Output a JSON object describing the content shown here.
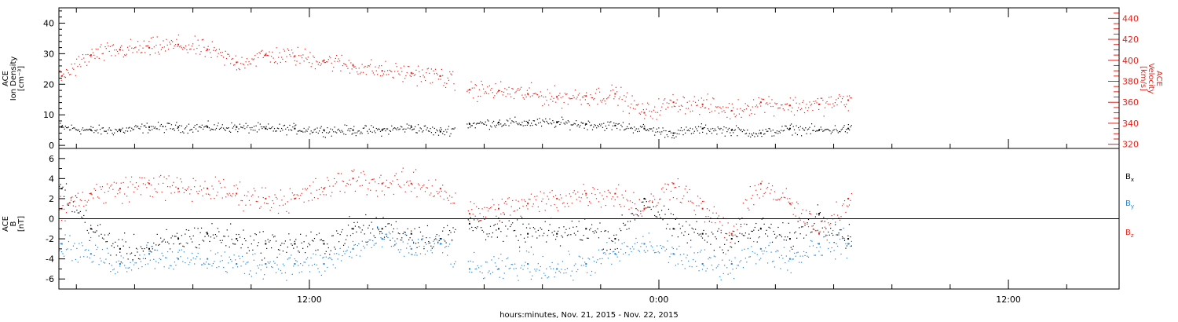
{
  "colors": {
    "black": "#000000",
    "red": "#e3231b",
    "blue": "#1f83d6",
    "frame": "#000000",
    "background": "#ffffff"
  },
  "x_axis": {
    "label": "hours:minutes, Nov. 21, 2015 - Nov. 22, 2015",
    "range_hours": [
      3.4,
      39.8
    ],
    "tick_labels": [
      {
        "hour": 12,
        "text": "12:00"
      },
      {
        "hour": 24,
        "text": "0:00"
      },
      {
        "hour": 36,
        "text": "12:00"
      }
    ],
    "minor_step_hours": 2
  },
  "panels": {
    "top": {
      "left_label_lines": [
        "ACE",
        "Ion Density",
        "[cm⁻³]"
      ],
      "right_label_lines": [
        "ACE",
        "Velocity",
        "[km/s]"
      ],
      "left_ylim": [
        -1,
        45
      ],
      "left_ticks": [
        0,
        10,
        20,
        30,
        40
      ],
      "right_ylim": [
        316,
        450
      ],
      "right_ticks": [
        320,
        340,
        360,
        380,
        400,
        420,
        440
      ]
    },
    "bottom": {
      "left_label_lines": [
        "ACE",
        "B",
        "[nT]"
      ],
      "ylim": [
        -7,
        7
      ],
      "ticks": [
        -6,
        -4,
        -2,
        0,
        2,
        4,
        6
      ],
      "legend": [
        {
          "text": "B",
          "sub": "x",
          "color": "#000000"
        },
        {
          "text": "B",
          "sub": "y",
          "color": "#1f83d6"
        },
        {
          "text": "B",
          "sub": "z",
          "color": "#e3231b"
        }
      ]
    }
  },
  "chart_data": [
    {
      "type": "scatter",
      "panel": "top",
      "xlabel": "hours:minutes, Nov. 21, 2015 - Nov. 22, 2015",
      "ylabel": "ACE Ion Density [cm⁻³]",
      "y2label": "ACE Velocity [km/s]",
      "ylim": [
        -1,
        45
      ],
      "y2lim": [
        316,
        450
      ],
      "gap_hours": [
        17.0,
        17.4
      ],
      "series": [
        {
          "name": "ACE Ion Density",
          "color": "#000000",
          "axis": "left",
          "x": [
            3.5,
            4.5,
            5.5,
            6.5,
            7.5,
            8.5,
            9.5,
            10.5,
            11.5,
            12.5,
            13.5,
            14.5,
            15.5,
            16.5,
            17.5,
            18.5,
            19.5,
            20.5,
            21.5,
            22.5,
            23.5,
            24.5,
            25.5,
            26.5,
            27.5,
            28.5,
            29.5,
            30.5
          ],
          "y": [
            6,
            5,
            5,
            6,
            6,
            6,
            6,
            5.5,
            5.5,
            5,
            5,
            5,
            6,
            4.5,
            7,
            7.5,
            7.5,
            7.5,
            7,
            6.5,
            5.5,
            4,
            5.5,
            5,
            4,
            5.5,
            5,
            5.5
          ]
        },
        {
          "name": "ACE Velocity",
          "color": "#e3231b",
          "axis": "right",
          "x": [
            3.5,
            4.5,
            5.5,
            6.5,
            7.5,
            8.5,
            9.5,
            10.5,
            11.5,
            12.5,
            13.5,
            14.5,
            15.5,
            16.5,
            17.5,
            18.5,
            19.5,
            20.5,
            21.5,
            22.5,
            23.5,
            24.5,
            25.5,
            26.5,
            27.5,
            28.5,
            29.5,
            30.5
          ],
          "y": [
            385,
            405,
            410,
            412,
            415,
            410,
            398,
            405,
            404,
            400,
            395,
            390,
            388,
            385,
            372,
            371,
            368,
            365,
            366,
            368,
            350,
            360,
            358,
            352,
            360,
            357,
            358,
            362
          ]
        }
      ]
    },
    {
      "type": "scatter",
      "panel": "bottom",
      "xlabel": "hours:minutes, Nov. 21, 2015 - Nov. 22, 2015",
      "ylabel": "ACE B [nT]",
      "ylim": [
        -7,
        7
      ],
      "gap_hours": [
        17.0,
        17.4
      ],
      "series": [
        {
          "name": "Bx",
          "color": "#000000",
          "x": [
            3.5,
            4.5,
            5.5,
            6.5,
            7.5,
            8.5,
            9.5,
            10.5,
            11.5,
            12.5,
            13.5,
            14.5,
            15.5,
            16.5,
            17.5,
            18.5,
            19.5,
            20.5,
            21.5,
            22.5,
            23.5,
            24.5,
            25.5,
            26.5,
            27.5,
            28.5,
            29.5,
            30.5
          ],
          "y": [
            3,
            -1,
            -3,
            -3,
            -2,
            -1.5,
            -2,
            -2.5,
            -2.5,
            -2.5,
            -1,
            -1,
            -1.5,
            -2,
            -0.5,
            -1,
            -1.5,
            -1.5,
            -1,
            -2,
            2,
            -1,
            -1.5,
            -2,
            -1,
            -2,
            0.5,
            -2
          ]
        },
        {
          "name": "By",
          "color": "#1f83d6",
          "x": [
            3.5,
            4.5,
            5.5,
            6.5,
            7.5,
            8.5,
            9.5,
            10.5,
            11.5,
            12.5,
            13.5,
            14.5,
            15.5,
            16.5,
            17.5,
            18.5,
            19.5,
            20.5,
            21.5,
            22.5,
            23.5,
            24.5,
            25.5,
            26.5,
            27.5,
            28.5,
            29.5,
            30.5
          ],
          "y": [
            -2.5,
            -3.5,
            -4.5,
            -3.5,
            -4,
            -4,
            -4.5,
            -4.5,
            -4.5,
            -4.5,
            -3,
            -2,
            -3,
            -2.5,
            -5,
            -5,
            -4.5,
            -5,
            -4.5,
            -3.5,
            -2.5,
            -3.5,
            -4.5,
            -4.5,
            -3,
            -4,
            -2.5,
            -2.5
          ]
        },
        {
          "name": "Bz",
          "color": "#e3231b",
          "x": [
            3.5,
            4.5,
            5.5,
            6.5,
            7.5,
            8.5,
            9.5,
            10.5,
            11.5,
            12.5,
            13.5,
            14.5,
            15.5,
            16.5,
            17.5,
            18.5,
            19.5,
            20.5,
            21.5,
            22.5,
            23.5,
            24.5,
            25.5,
            26.5,
            27.5,
            28.5,
            29.5,
            30.5
          ],
          "y": [
            1,
            2.5,
            3,
            3.5,
            3,
            3,
            2.5,
            2,
            2,
            3,
            4,
            3.5,
            3.5,
            3,
            0.5,
            1,
            1.5,
            2,
            2.5,
            2.5,
            1,
            3.5,
            1,
            -1.5,
            3.5,
            1.5,
            -1.5,
            2
          ]
        }
      ]
    }
  ]
}
